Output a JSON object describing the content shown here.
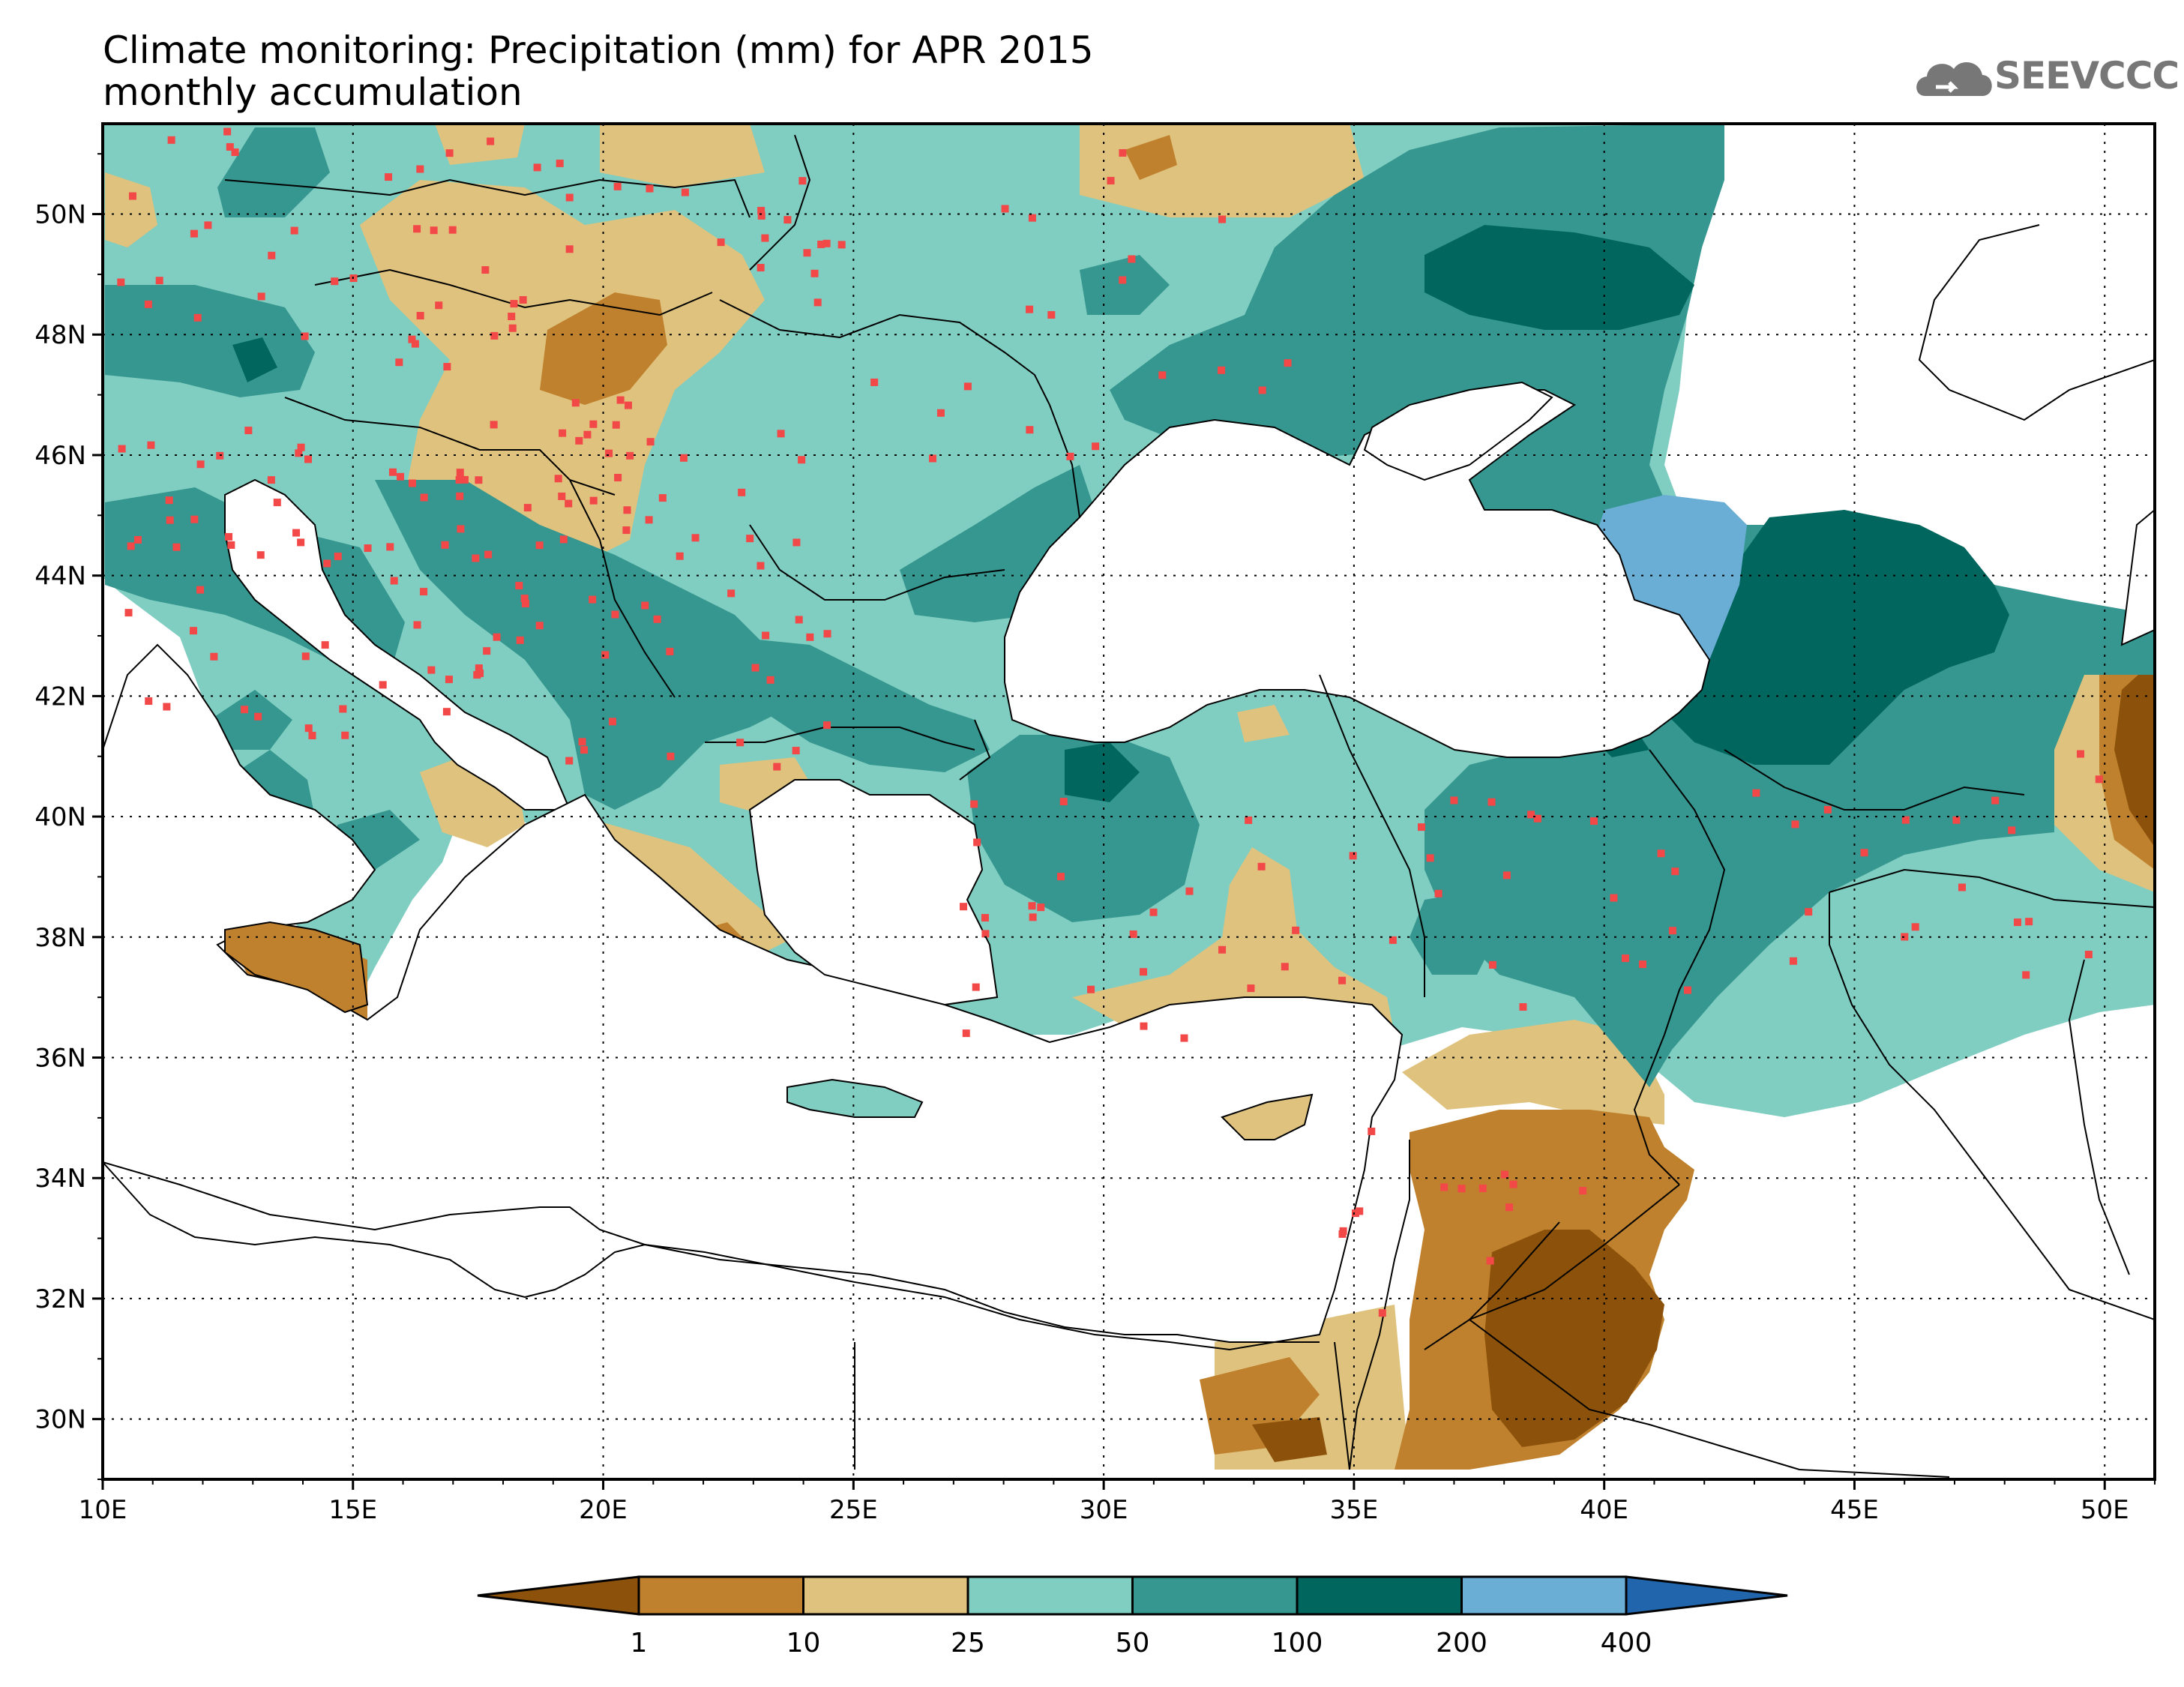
{
  "header": {
    "title_line1": "Climate monitoring: Precipitation (mm) for APR 2015",
    "title_line2": "monthly accumulation",
    "logo_text": "SEEVCCC",
    "logo_icon": "cloud-icon"
  },
  "map": {
    "lon_range": [
      10,
      51
    ],
    "lat_range": [
      29,
      51.5
    ],
    "lon_ticks": [
      {
        "value": 10,
        "label": "10E"
      },
      {
        "value": 15,
        "label": "15E"
      },
      {
        "value": 20,
        "label": "20E"
      },
      {
        "value": 25,
        "label": "25E"
      },
      {
        "value": 30,
        "label": "30E"
      },
      {
        "value": 35,
        "label": "35E"
      },
      {
        "value": 40,
        "label": "40E"
      },
      {
        "value": 45,
        "label": "45E"
      },
      {
        "value": 50,
        "label": "50E"
      }
    ],
    "lat_ticks": [
      {
        "value": 30,
        "label": "30N"
      },
      {
        "value": 32,
        "label": "32N"
      },
      {
        "value": 34,
        "label": "34N"
      },
      {
        "value": 36,
        "label": "36N"
      },
      {
        "value": 38,
        "label": "38N"
      },
      {
        "value": 40,
        "label": "40N"
      },
      {
        "value": 42,
        "label": "42N"
      },
      {
        "value": 44,
        "label": "44N"
      },
      {
        "value": 46,
        "label": "46N"
      },
      {
        "value": 48,
        "label": "48N"
      },
      {
        "value": 50,
        "label": "50N"
      }
    ],
    "grid": "dotted",
    "station_color": "#f24848"
  },
  "colorbar": {
    "levels": [
      "1",
      "10",
      "25",
      "50",
      "100",
      "200",
      "400"
    ],
    "colors": [
      "#8c510a",
      "#bf812d",
      "#dfc27d",
      "#80cdc1",
      "#35978f",
      "#01665e",
      "#6aaed6",
      "#2166ac"
    ]
  }
}
